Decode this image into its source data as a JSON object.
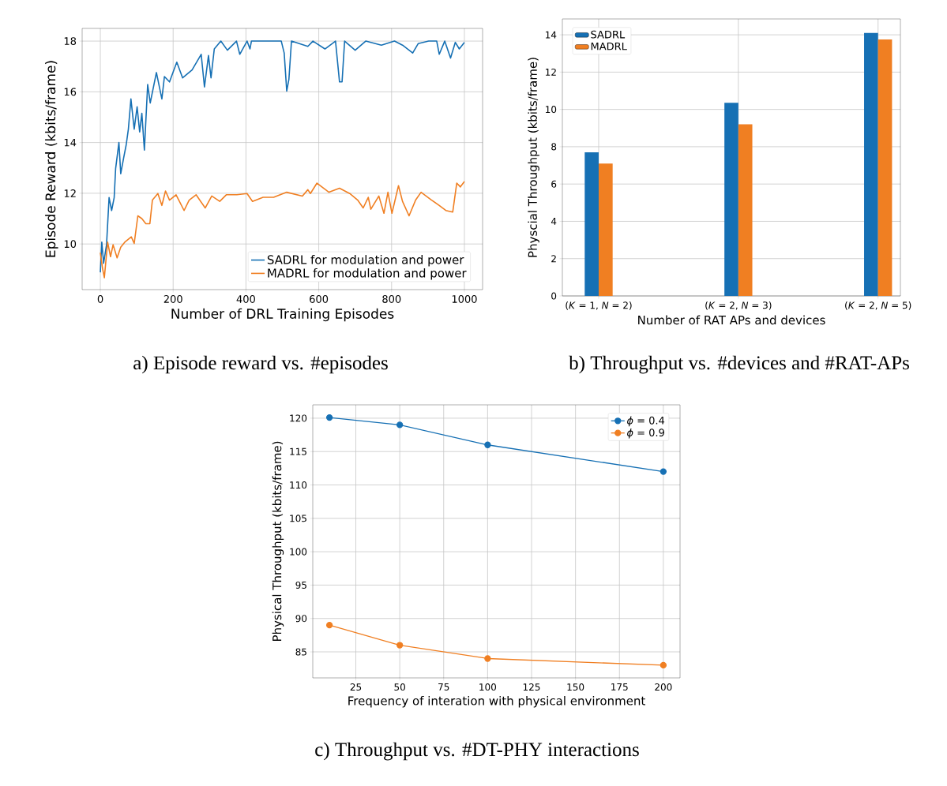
{
  "chart_data": [
    {
      "type": "line",
      "xlabel": "Number of DRL Training Episodes",
      "ylabel": "Episode Reward (kbits/frame)",
      "xlim": [
        -50,
        1050
      ],
      "ylim": [
        8.2,
        18.5
      ],
      "xticks": [
        0,
        200,
        400,
        600,
        800,
        1000
      ],
      "yticks": [
        10,
        12,
        14,
        16,
        18
      ],
      "grid": true,
      "legend": "bottom right",
      "annotations": [
        "a) Episode reward vs. #episodes"
      ],
      "series": [
        {
          "name": "SADRL for modulation and power",
          "color": "#1670b4",
          "x": [
            0,
            4,
            9,
            17,
            24,
            31,
            38,
            42,
            51,
            56,
            64,
            71,
            77,
            84,
            93,
            101,
            108,
            114,
            121,
            130,
            137,
            154,
            169,
            176,
            190,
            210,
            226,
            252,
            277,
            286,
            297,
            304,
            313,
            331,
            349,
            374,
            383,
            403,
            411,
            415,
            497,
            505,
            512,
            518,
            525,
            570,
            584,
            617,
            646,
            657,
            664,
            671,
            700,
            729,
            772,
            808,
            830,
            858,
            873,
            902,
            924,
            931,
            946,
            962,
            975,
            986,
            1000
          ],
          "values": [
            8.88,
            10.07,
            9.24,
            9.97,
            11.83,
            11.32,
            11.83,
            12.97,
            14.0,
            12.77,
            13.39,
            13.91,
            14.53,
            15.72,
            14.53,
            15.41,
            14.42,
            15.15,
            13.7,
            16.29,
            15.56,
            16.76,
            15.72,
            16.6,
            16.39,
            17.17,
            16.55,
            16.86,
            17.48,
            16.19,
            17.43,
            16.55,
            17.69,
            18.0,
            17.64,
            18.0,
            17.48,
            18.0,
            17.69,
            18.0,
            18.0,
            17.53,
            16.03,
            16.5,
            18.0,
            17.79,
            18.0,
            17.69,
            18.0,
            16.39,
            16.39,
            18.0,
            17.64,
            18.0,
            17.84,
            18.0,
            17.84,
            17.53,
            17.9,
            18.0,
            18.0,
            17.48,
            18.0,
            17.33,
            17.95,
            17.69,
            17.95
          ]
        },
        {
          "name": "MADRL for modulation and power",
          "color": "#f07f22",
          "x": [
            0,
            6,
            11,
            20,
            28,
            35,
            46,
            56,
            67,
            85,
            93,
            103,
            114,
            125,
            136,
            143,
            158,
            169,
            179,
            190,
            208,
            230,
            244,
            263,
            288,
            306,
            328,
            346,
            375,
            403,
            418,
            447,
            476,
            512,
            555,
            570,
            577,
            595,
            628,
            657,
            685,
            707,
            722,
            736,
            743,
            765,
            779,
            790,
            801,
            819,
            830,
            848,
            866,
            881,
            910,
            931,
            949,
            968,
            979,
            989,
            1000
          ],
          "values": [
            9.66,
            9.04,
            8.67,
            10.07,
            9.5,
            9.97,
            9.45,
            9.87,
            10.07,
            10.28,
            10.02,
            11.11,
            11.0,
            10.8,
            10.8,
            11.73,
            11.99,
            11.52,
            12.09,
            11.73,
            11.94,
            11.32,
            11.73,
            11.94,
            11.42,
            11.89,
            11.68,
            11.94,
            11.94,
            11.99,
            11.68,
            11.84,
            11.84,
            12.04,
            11.89,
            12.14,
            11.99,
            12.4,
            12.04,
            12.2,
            11.99,
            11.73,
            11.42,
            11.84,
            11.37,
            11.89,
            11.21,
            12.04,
            11.21,
            12.3,
            11.68,
            11.11,
            11.73,
            12.04,
            11.73,
            11.52,
            11.32,
            11.26,
            12.4,
            12.25,
            12.46
          ]
        }
      ]
    },
    {
      "type": "bar",
      "xlabel": "Number of RAT APs and devices",
      "ylabel": "Physcial Throughput (kbits/frame)",
      "categories": [
        "(*K* = 1, *N* = 2)",
        "(*K* = 2, *N* = 3)",
        "(*K* = 2, *N* = 5)"
      ],
      "ylim": [
        0,
        14.85
      ],
      "yticks": [
        0,
        2,
        4,
        6,
        8,
        10,
        12,
        14
      ],
      "grid": true,
      "legend": "top left",
      "annotations": [
        "b) Throughput vs. #devices and #RAT-APs"
      ],
      "series": [
        {
          "name": "SADRL",
          "color": "#1670b4",
          "values": [
            7.7,
            10.35,
            14.1
          ]
        },
        {
          "name": "MADRL",
          "color": "#f07f22",
          "values": [
            7.1,
            9.2,
            13.75
          ]
        }
      ]
    },
    {
      "type": "line",
      "xlabel": "Frequency of interation with physical environment",
      "ylabel": "Physical Throughput (kbits/frame)",
      "x": [
        10,
        50,
        100,
        200
      ],
      "xlim": [
        0.5,
        209.5
      ],
      "ylim": [
        81.1,
        122
      ],
      "xticks": [
        25,
        50,
        75,
        100,
        125,
        150,
        175,
        200
      ],
      "yticks": [
        85,
        90,
        95,
        100,
        105,
        110,
        115,
        120
      ],
      "grid": true,
      "legend": "top right",
      "marker": "circle",
      "annotations": [
        "c) Throughput vs. #DT-PHY interactions"
      ],
      "series": [
        {
          "name": "*ϕ* = 0.4",
          "color": "#1670b4",
          "values": [
            120.1,
            119,
            116,
            112
          ]
        },
        {
          "name": "*ϕ* = 0.9",
          "color": "#f07f22",
          "values": [
            89,
            86,
            84,
            83
          ]
        }
      ]
    }
  ]
}
